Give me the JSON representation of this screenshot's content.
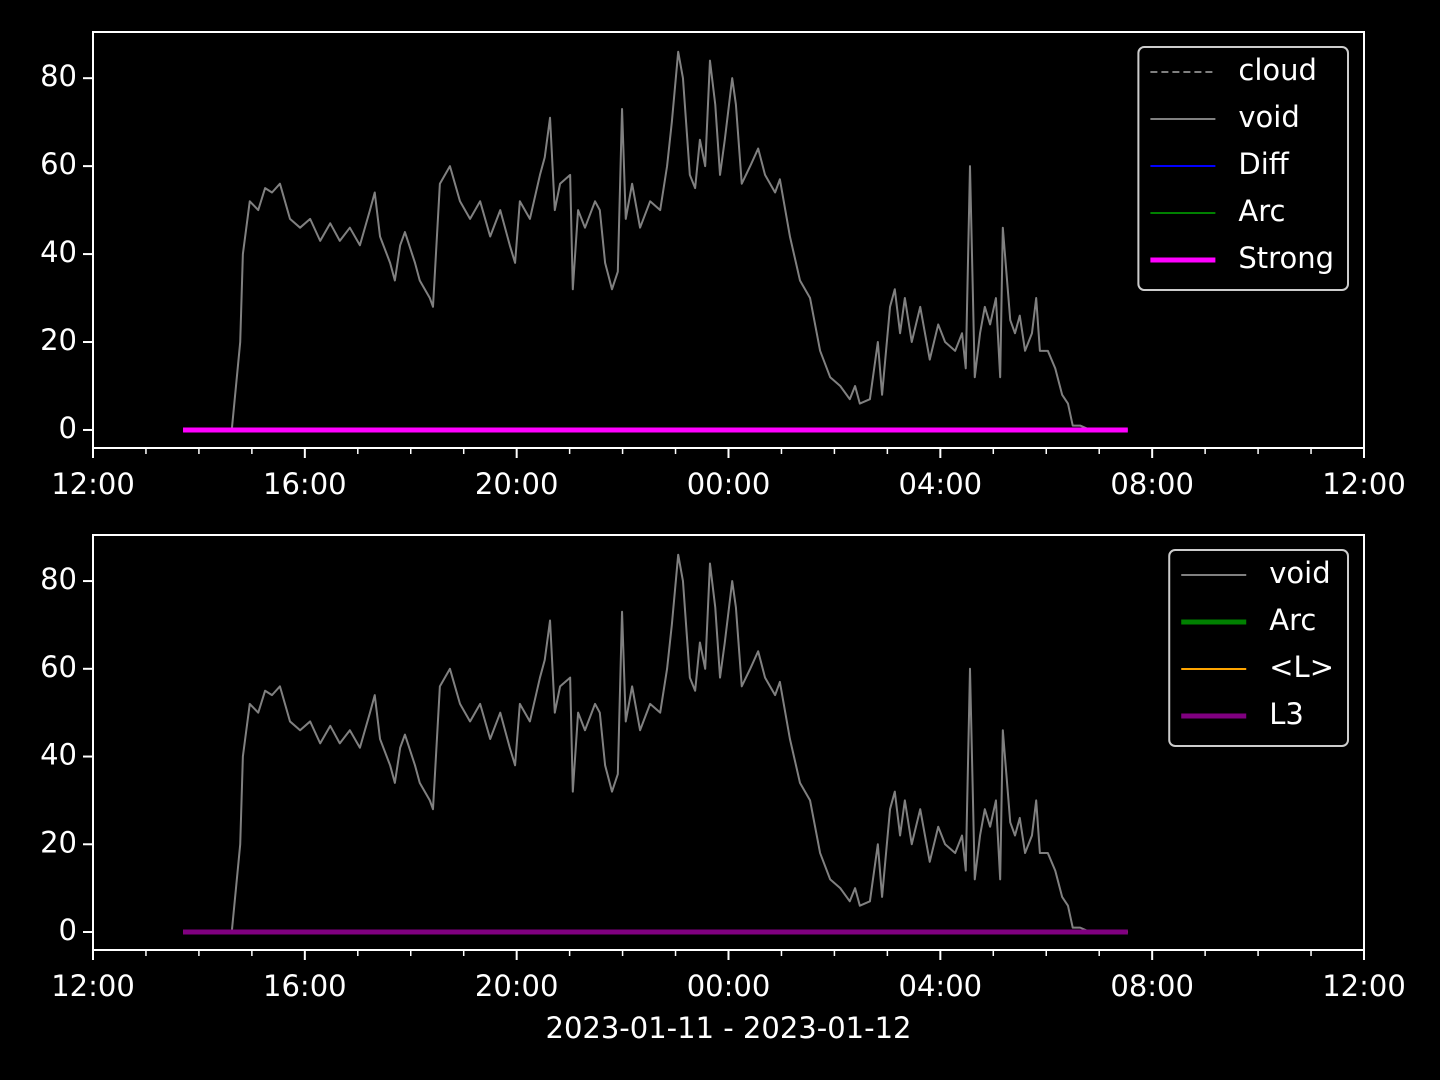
{
  "chart_data": [
    {
      "type": "line",
      "legend": "upper right",
      "xlim": [
        12,
        36
      ],
      "ylim": [
        -4.1,
        90.5
      ],
      "xticks": [
        {
          "value": 12,
          "label": "12:00"
        },
        {
          "value": 16,
          "label": "16:00"
        },
        {
          "value": 20,
          "label": "20:00"
        },
        {
          "value": 24,
          "label": "00:00"
        },
        {
          "value": 28,
          "label": "04:00"
        },
        {
          "value": 32,
          "label": "08:00"
        },
        {
          "value": 36,
          "label": "12:00"
        }
      ],
      "xminorticks": [
        13,
        14,
        15,
        17,
        18,
        19,
        21,
        22,
        23,
        25,
        26,
        27,
        29,
        30,
        31,
        33,
        34,
        35
      ],
      "yticks": [
        0,
        20,
        40,
        60,
        80
      ],
      "series": [
        {
          "name": "cloud",
          "color": "#808080",
          "linestyle": "dashed",
          "linewidth": 2,
          "x": [
            13.7,
            31.54
          ],
          "values": [
            0,
            0
          ]
        },
        {
          "name": "void",
          "color": "#808080",
          "linestyle": "solid",
          "linewidth": 2,
          "x": [
            14.62,
            14.7,
            14.78,
            14.83,
            14.96,
            15.12,
            15.25,
            15.38,
            15.53,
            15.72,
            15.91,
            16.1,
            16.29,
            16.48,
            16.66,
            16.85,
            17.04,
            17.23,
            17.32,
            17.42,
            17.61,
            17.7,
            17.8,
            17.89,
            18.08,
            18.17,
            18.36,
            18.42,
            18.55,
            18.74,
            18.93,
            19.12,
            19.31,
            19.5,
            19.69,
            19.87,
            19.97,
            20.06,
            20.25,
            20.44,
            20.53,
            20.63,
            20.72,
            20.82,
            21.01,
            21.06,
            21.16,
            21.29,
            21.48,
            21.57,
            21.67,
            21.8,
            21.91,
            21.99,
            22.06,
            22.18,
            22.33,
            22.52,
            22.71,
            22.84,
            22.93,
            23.05,
            23.14,
            23.27,
            23.37,
            23.46,
            23.56,
            23.65,
            23.75,
            23.84,
            23.93,
            24.07,
            24.14,
            24.25,
            24.41,
            24.56,
            24.69,
            24.88,
            24.97,
            25.16,
            25.35,
            25.54,
            25.73,
            25.92,
            26.11,
            26.29,
            26.39,
            26.48,
            26.67,
            26.82,
            26.9,
            27.05,
            27.14,
            27.24,
            27.33,
            27.46,
            27.62,
            27.8,
            27.96,
            28.09,
            28.28,
            28.41,
            28.48,
            28.56,
            28.65,
            28.75,
            28.84,
            28.94,
            29.05,
            29.13,
            29.18,
            29.32,
            29.41,
            29.5,
            29.6,
            29.73,
            29.81,
            29.88,
            30.03,
            30.17,
            30.3,
            30.41,
            30.5,
            30.64,
            30.83
          ],
          "values": [
            0,
            10,
            20,
            40,
            52,
            50,
            55,
            54,
            56,
            48,
            46,
            48,
            43,
            47,
            43,
            46,
            42,
            50,
            54,
            44,
            38,
            34,
            42,
            45,
            38,
            34,
            30,
            28,
            56,
            60,
            52,
            48,
            52,
            44,
            50,
            42,
            38,
            52,
            48,
            58,
            62,
            71,
            50,
            56,
            58,
            32,
            50,
            46,
            52,
            50,
            38,
            32,
            36,
            73,
            48,
            56,
            46,
            52,
            50,
            60,
            70,
            86,
            80,
            58,
            55,
            66,
            60,
            84,
            74,
            58,
            66,
            80,
            74,
            56,
            60,
            64,
            58,
            54,
            57,
            44,
            34,
            30,
            18,
            12,
            10,
            7,
            10,
            6,
            7,
            20,
            8,
            28,
            32,
            22,
            30,
            20,
            28,
            16,
            24,
            20,
            18,
            22,
            14,
            60,
            12,
            22,
            28,
            24,
            30,
            12,
            46,
            25,
            22,
            26,
            18,
            22,
            30,
            18,
            18,
            14,
            8,
            6,
            1,
            1,
            0
          ]
        },
        {
          "name": "Diff",
          "color": "#0000ff",
          "linestyle": "solid",
          "linewidth": 2,
          "x": [
            13.7,
            31.54
          ],
          "values": [
            0,
            0
          ]
        },
        {
          "name": "Arc",
          "color": "#008000",
          "linestyle": "solid",
          "linewidth": 2,
          "x": [
            13.7,
            31.54
          ],
          "values": [
            0,
            0
          ]
        },
        {
          "name": "Strong",
          "color": "#ff00ff",
          "linestyle": "solid",
          "linewidth": 5,
          "x": [
            13.7,
            31.54
          ],
          "values": [
            0,
            0
          ]
        }
      ]
    },
    {
      "type": "line",
      "legend": "upper right",
      "xlabel": "2023-01-11 - 2023-01-12",
      "xlim": [
        12,
        36
      ],
      "ylim": [
        -4.1,
        90.5
      ],
      "xticks": [
        {
          "value": 12,
          "label": "12:00"
        },
        {
          "value": 16,
          "label": "16:00"
        },
        {
          "value": 20,
          "label": "20:00"
        },
        {
          "value": 24,
          "label": "00:00"
        },
        {
          "value": 28,
          "label": "04:00"
        },
        {
          "value": 32,
          "label": "08:00"
        },
        {
          "value": 36,
          "label": "12:00"
        }
      ],
      "xminorticks": [
        13,
        14,
        15,
        17,
        18,
        19,
        21,
        22,
        23,
        25,
        26,
        27,
        29,
        30,
        31,
        33,
        34,
        35
      ],
      "yticks": [
        0,
        20,
        40,
        60,
        80
      ],
      "series": [
        {
          "name": "void",
          "color": "#808080",
          "linestyle": "solid",
          "linewidth": 2,
          "x": [
            14.62,
            14.7,
            14.78,
            14.83,
            14.96,
            15.12,
            15.25,
            15.38,
            15.53,
            15.72,
            15.91,
            16.1,
            16.29,
            16.48,
            16.66,
            16.85,
            17.04,
            17.23,
            17.32,
            17.42,
            17.61,
            17.7,
            17.8,
            17.89,
            18.08,
            18.17,
            18.36,
            18.42,
            18.55,
            18.74,
            18.93,
            19.12,
            19.31,
            19.5,
            19.69,
            19.87,
            19.97,
            20.06,
            20.25,
            20.44,
            20.53,
            20.63,
            20.72,
            20.82,
            21.01,
            21.06,
            21.16,
            21.29,
            21.48,
            21.57,
            21.67,
            21.8,
            21.91,
            21.99,
            22.06,
            22.18,
            22.33,
            22.52,
            22.71,
            22.84,
            22.93,
            23.05,
            23.14,
            23.27,
            23.37,
            23.46,
            23.56,
            23.65,
            23.75,
            23.84,
            23.93,
            24.07,
            24.14,
            24.25,
            24.41,
            24.56,
            24.69,
            24.88,
            24.97,
            25.16,
            25.35,
            25.54,
            25.73,
            25.92,
            26.11,
            26.29,
            26.39,
            26.48,
            26.67,
            26.82,
            26.9,
            27.05,
            27.14,
            27.24,
            27.33,
            27.46,
            27.62,
            27.8,
            27.96,
            28.09,
            28.28,
            28.41,
            28.48,
            28.56,
            28.65,
            28.75,
            28.84,
            28.94,
            29.05,
            29.13,
            29.18,
            29.32,
            29.41,
            29.5,
            29.6,
            29.73,
            29.81,
            29.88,
            30.03,
            30.17,
            30.3,
            30.41,
            30.5,
            30.64,
            30.83
          ],
          "values": [
            0,
            10,
            20,
            40,
            52,
            50,
            55,
            54,
            56,
            48,
            46,
            48,
            43,
            47,
            43,
            46,
            42,
            50,
            54,
            44,
            38,
            34,
            42,
            45,
            38,
            34,
            30,
            28,
            56,
            60,
            52,
            48,
            52,
            44,
            50,
            42,
            38,
            52,
            48,
            58,
            62,
            71,
            50,
            56,
            58,
            32,
            50,
            46,
            52,
            50,
            38,
            32,
            36,
            73,
            48,
            56,
            46,
            52,
            50,
            60,
            70,
            86,
            80,
            58,
            55,
            66,
            60,
            84,
            74,
            58,
            66,
            80,
            74,
            56,
            60,
            64,
            58,
            54,
            57,
            44,
            34,
            30,
            18,
            12,
            10,
            7,
            10,
            6,
            7,
            20,
            8,
            28,
            32,
            22,
            30,
            20,
            28,
            16,
            24,
            20,
            18,
            22,
            14,
            60,
            12,
            22,
            28,
            24,
            30,
            12,
            46,
            25,
            22,
            26,
            18,
            22,
            30,
            18,
            18,
            14,
            8,
            6,
            1,
            1,
            0
          ]
        },
        {
          "name": "Arc",
          "color": "#008000",
          "linestyle": "solid",
          "linewidth": 5,
          "x": [
            13.7,
            31.54
          ],
          "values": [
            0,
            0
          ]
        },
        {
          "name": "<L>",
          "color": "#ffa500",
          "linestyle": "solid",
          "linewidth": 2,
          "x": [
            13.7,
            31.54
          ],
          "values": [
            0,
            0
          ]
        },
        {
          "name": "L3",
          "color": "#800080",
          "linestyle": "solid",
          "linewidth": 5,
          "x": [
            13.7,
            31.54
          ],
          "values": [
            0,
            0
          ]
        }
      ]
    }
  ]
}
